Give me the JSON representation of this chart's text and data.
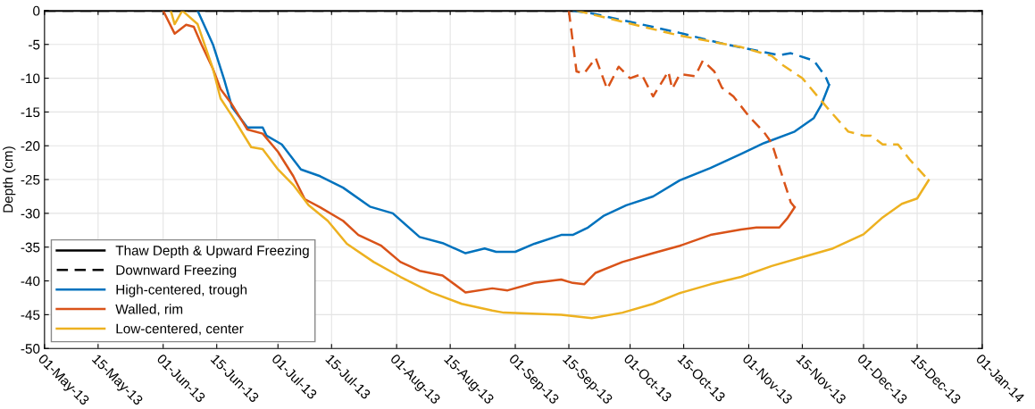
{
  "chart_data": {
    "type": "line",
    "ylabel": "Depth (cm)",
    "xlim": [
      "2013-05-01",
      "2014-01-01"
    ],
    "ylim": [
      -50,
      0
    ],
    "xticks": [
      {
        "value": "2013-05-01",
        "label": "01-May-13"
      },
      {
        "value": "2013-05-15",
        "label": "15-May-13"
      },
      {
        "value": "2013-06-01",
        "label": "01-Jun-13"
      },
      {
        "value": "2013-06-15",
        "label": "15-Jun-13"
      },
      {
        "value": "2013-07-01",
        "label": "01-Jul-13"
      },
      {
        "value": "2013-07-15",
        "label": "15-Jul-13"
      },
      {
        "value": "2013-08-01",
        "label": "01-Aug-13"
      },
      {
        "value": "2013-08-15",
        "label": "15-Aug-13"
      },
      {
        "value": "2013-09-01",
        "label": "01-Sep-13"
      },
      {
        "value": "2013-09-15",
        "label": "15-Sep-13"
      },
      {
        "value": "2013-10-01",
        "label": "01-Oct-13"
      },
      {
        "value": "2013-10-15",
        "label": "15-Oct-13"
      },
      {
        "value": "2013-11-01",
        "label": "01-Nov-13"
      },
      {
        "value": "2013-11-15",
        "label": "15-Nov-13"
      },
      {
        "value": "2013-12-01",
        "label": "01-Dec-13"
      },
      {
        "value": "2013-12-15",
        "label": "15-Dec-13"
      },
      {
        "value": "2014-01-01",
        "label": "01-Jan-14"
      }
    ],
    "yticks": [
      -50,
      -45,
      -40,
      -35,
      -30,
      -25,
      -20,
      -15,
      -10,
      -5,
      0
    ],
    "grid": true,
    "legend": "bottom left",
    "series": [
      {
        "name": "Thaw Depth & Upward Freezing",
        "color": "#000000",
        "line_style": "solid",
        "x": [
          "2013-05-01",
          "2014-01-01"
        ],
        "values": [
          0,
          0
        ]
      },
      {
        "name": "Downward Freezing",
        "color": "#000000",
        "line_style": "dashed",
        "x": [
          "2013-05-01",
          "2014-01-01"
        ],
        "values": [
          0,
          0
        ]
      },
      {
        "name": "High-centered, trough",
        "color": "#0072bd",
        "line_style": "solid",
        "x": [
          "2013-06-10",
          "2013-06-14",
          "2013-06-17",
          "2013-06-19",
          "2013-06-23",
          "2013-06-27",
          "2013-06-28",
          "2013-07-02",
          "2013-07-07",
          "2013-07-12",
          "2013-07-18",
          "2013-07-25",
          "2013-07-31",
          "2013-08-07",
          "2013-08-13",
          "2013-08-19",
          "2013-08-24",
          "2013-08-27",
          "2013-09-01",
          "2013-09-06",
          "2013-09-13",
          "2013-09-16",
          "2013-09-20",
          "2013-09-24",
          "2013-09-30",
          "2013-10-07",
          "2013-10-14",
          "2013-10-22",
          "2013-10-30",
          "2013-11-05",
          "2013-11-13",
          "2013-11-18",
          "2013-11-20",
          "2013-11-22"
        ],
        "values": [
          0,
          -5,
          -10.3,
          -14.3,
          -17.3,
          -17.3,
          -18.5,
          -19.8,
          -23.5,
          -24.5,
          -26.2,
          -29,
          -30,
          -33.5,
          -34.4,
          -35.9,
          -35.2,
          -35.7,
          -35.7,
          -34.5,
          -33.2,
          -33.2,
          -32.1,
          -30.4,
          -28.8,
          -27.5,
          -25.1,
          -23.3,
          -21.2,
          -19.6,
          -17.9,
          -15.9,
          -13.9,
          -11
        ]
      },
      {
        "name": "Walled, rim",
        "color": "#d95319",
        "line_style": "solid",
        "x": [
          "2013-06-01",
          "2013-06-04",
          "2013-06-07",
          "2013-06-09",
          "2013-06-11",
          "2013-06-14",
          "2013-06-16",
          "2013-06-19",
          "2013-06-23",
          "2013-06-27",
          "2013-07-01",
          "2013-07-05",
          "2013-07-08",
          "2013-07-12",
          "2013-07-18",
          "2013-07-22",
          "2013-07-28",
          "2013-08-02",
          "2013-08-07",
          "2013-08-13",
          "2013-08-19",
          "2013-08-26",
          "2013-08-30",
          "2013-09-06",
          "2013-09-13",
          "2013-09-16",
          "2013-09-19",
          "2013-09-22",
          "2013-09-29",
          "2013-10-07",
          "2013-10-14",
          "2013-10-22",
          "2013-10-30",
          "2013-11-03",
          "2013-11-09",
          "2013-11-11",
          "2013-11-13"
        ],
        "values": [
          0,
          -3.4,
          -2.1,
          -2.4,
          -5,
          -8.6,
          -11.6,
          -13.9,
          -17.6,
          -18.2,
          -20.9,
          -24.5,
          -27.9,
          -29.1,
          -31.1,
          -33.2,
          -34.8,
          -37.2,
          -38.5,
          -39.2,
          -41.7,
          -41.1,
          -41.4,
          -40.3,
          -39.8,
          -40.3,
          -40.5,
          -38.8,
          -37.2,
          -35.9,
          -34.8,
          -33.2,
          -32.4,
          -32.1,
          -32.1,
          -30.8,
          -29.1
        ]
      },
      {
        "name": "Low-centered, center",
        "color": "#edb120",
        "line_style": "solid",
        "x": [
          "2013-06-03",
          "2013-06-04",
          "2013-06-06",
          "2013-06-10",
          "2013-06-14",
          "2013-06-16",
          "2013-06-19",
          "2013-06-24",
          "2013-06-27",
          "2013-07-01",
          "2013-07-05",
          "2013-07-09",
          "2013-07-14",
          "2013-07-19",
          "2013-07-26",
          "2013-08-02",
          "2013-08-10",
          "2013-08-18",
          "2013-08-26",
          "2013-08-29",
          "2013-09-13",
          "2013-09-21",
          "2013-09-29",
          "2013-10-07",
          "2013-10-14",
          "2013-10-22",
          "2013-10-30",
          "2013-11-07",
          "2013-11-15",
          "2013-11-23",
          "2013-12-01",
          "2013-12-06",
          "2013-12-11",
          "2013-12-15",
          "2013-12-18"
        ],
        "values": [
          0,
          -2,
          0,
          -2,
          -8.6,
          -13,
          -15.6,
          -20.2,
          -20.5,
          -23.5,
          -25.8,
          -28.8,
          -31.1,
          -34.5,
          -37.2,
          -39.4,
          -41.7,
          -43.4,
          -44.4,
          -44.7,
          -45,
          -45.5,
          -44.7,
          -43.4,
          -41.8,
          -40.5,
          -39.4,
          -37.8,
          -36.5,
          -35.2,
          -33.1,
          -30.6,
          -28.6,
          -27.8,
          -25.1
        ]
      },
      {
        "color": "#0072bd",
        "line_style": "dashed",
        "x": [
          "2013-09-16",
          "2013-09-21",
          "2013-10-14",
          "2013-10-26",
          "2013-11-09",
          "2013-11-12",
          "2013-11-18",
          "2013-11-21",
          "2013-11-22"
        ],
        "values": [
          0,
          -0.4,
          -3.3,
          -5,
          -6.6,
          -6.3,
          -7.4,
          -9.7,
          -11
        ]
      },
      {
        "color": "#d95319",
        "line_style": "dashed",
        "x": [
          "2013-09-15",
          "2013-09-17",
          "2013-09-19",
          "2013-09-22",
          "2013-09-25",
          "2013-09-28",
          "2013-10-01",
          "2013-10-04",
          "2013-10-07",
          "2013-10-11",
          "2013-10-12",
          "2013-10-14",
          "2013-10-18",
          "2013-10-20",
          "2013-10-23",
          "2013-10-25",
          "2013-10-28",
          "2013-11-01",
          "2013-11-05",
          "2013-11-07",
          "2013-11-10",
          "2013-11-12",
          "2013-11-13"
        ],
        "values": [
          0,
          -9,
          -9.3,
          -7,
          -11.6,
          -8.3,
          -10,
          -9.4,
          -12.7,
          -9,
          -11.6,
          -9.4,
          -9.7,
          -7.4,
          -9,
          -11.4,
          -12.7,
          -15.6,
          -18,
          -19.6,
          -24.9,
          -28.4,
          -29.1
        ]
      },
      {
        "color": "#edb120",
        "line_style": "dashed",
        "x": [
          "2013-09-17",
          "2013-10-14",
          "2013-10-30",
          "2013-11-07",
          "2013-11-10",
          "2013-11-15",
          "2013-11-22",
          "2013-11-27",
          "2013-12-01",
          "2013-12-03",
          "2013-12-06",
          "2013-12-10",
          "2013-12-13",
          "2013-12-18"
        ],
        "values": [
          0,
          -3.7,
          -5.4,
          -6.7,
          -8.1,
          -10,
          -14.7,
          -17.9,
          -18.5,
          -18.5,
          -19.8,
          -19.8,
          -22,
          -25.1
        ]
      }
    ]
  }
}
